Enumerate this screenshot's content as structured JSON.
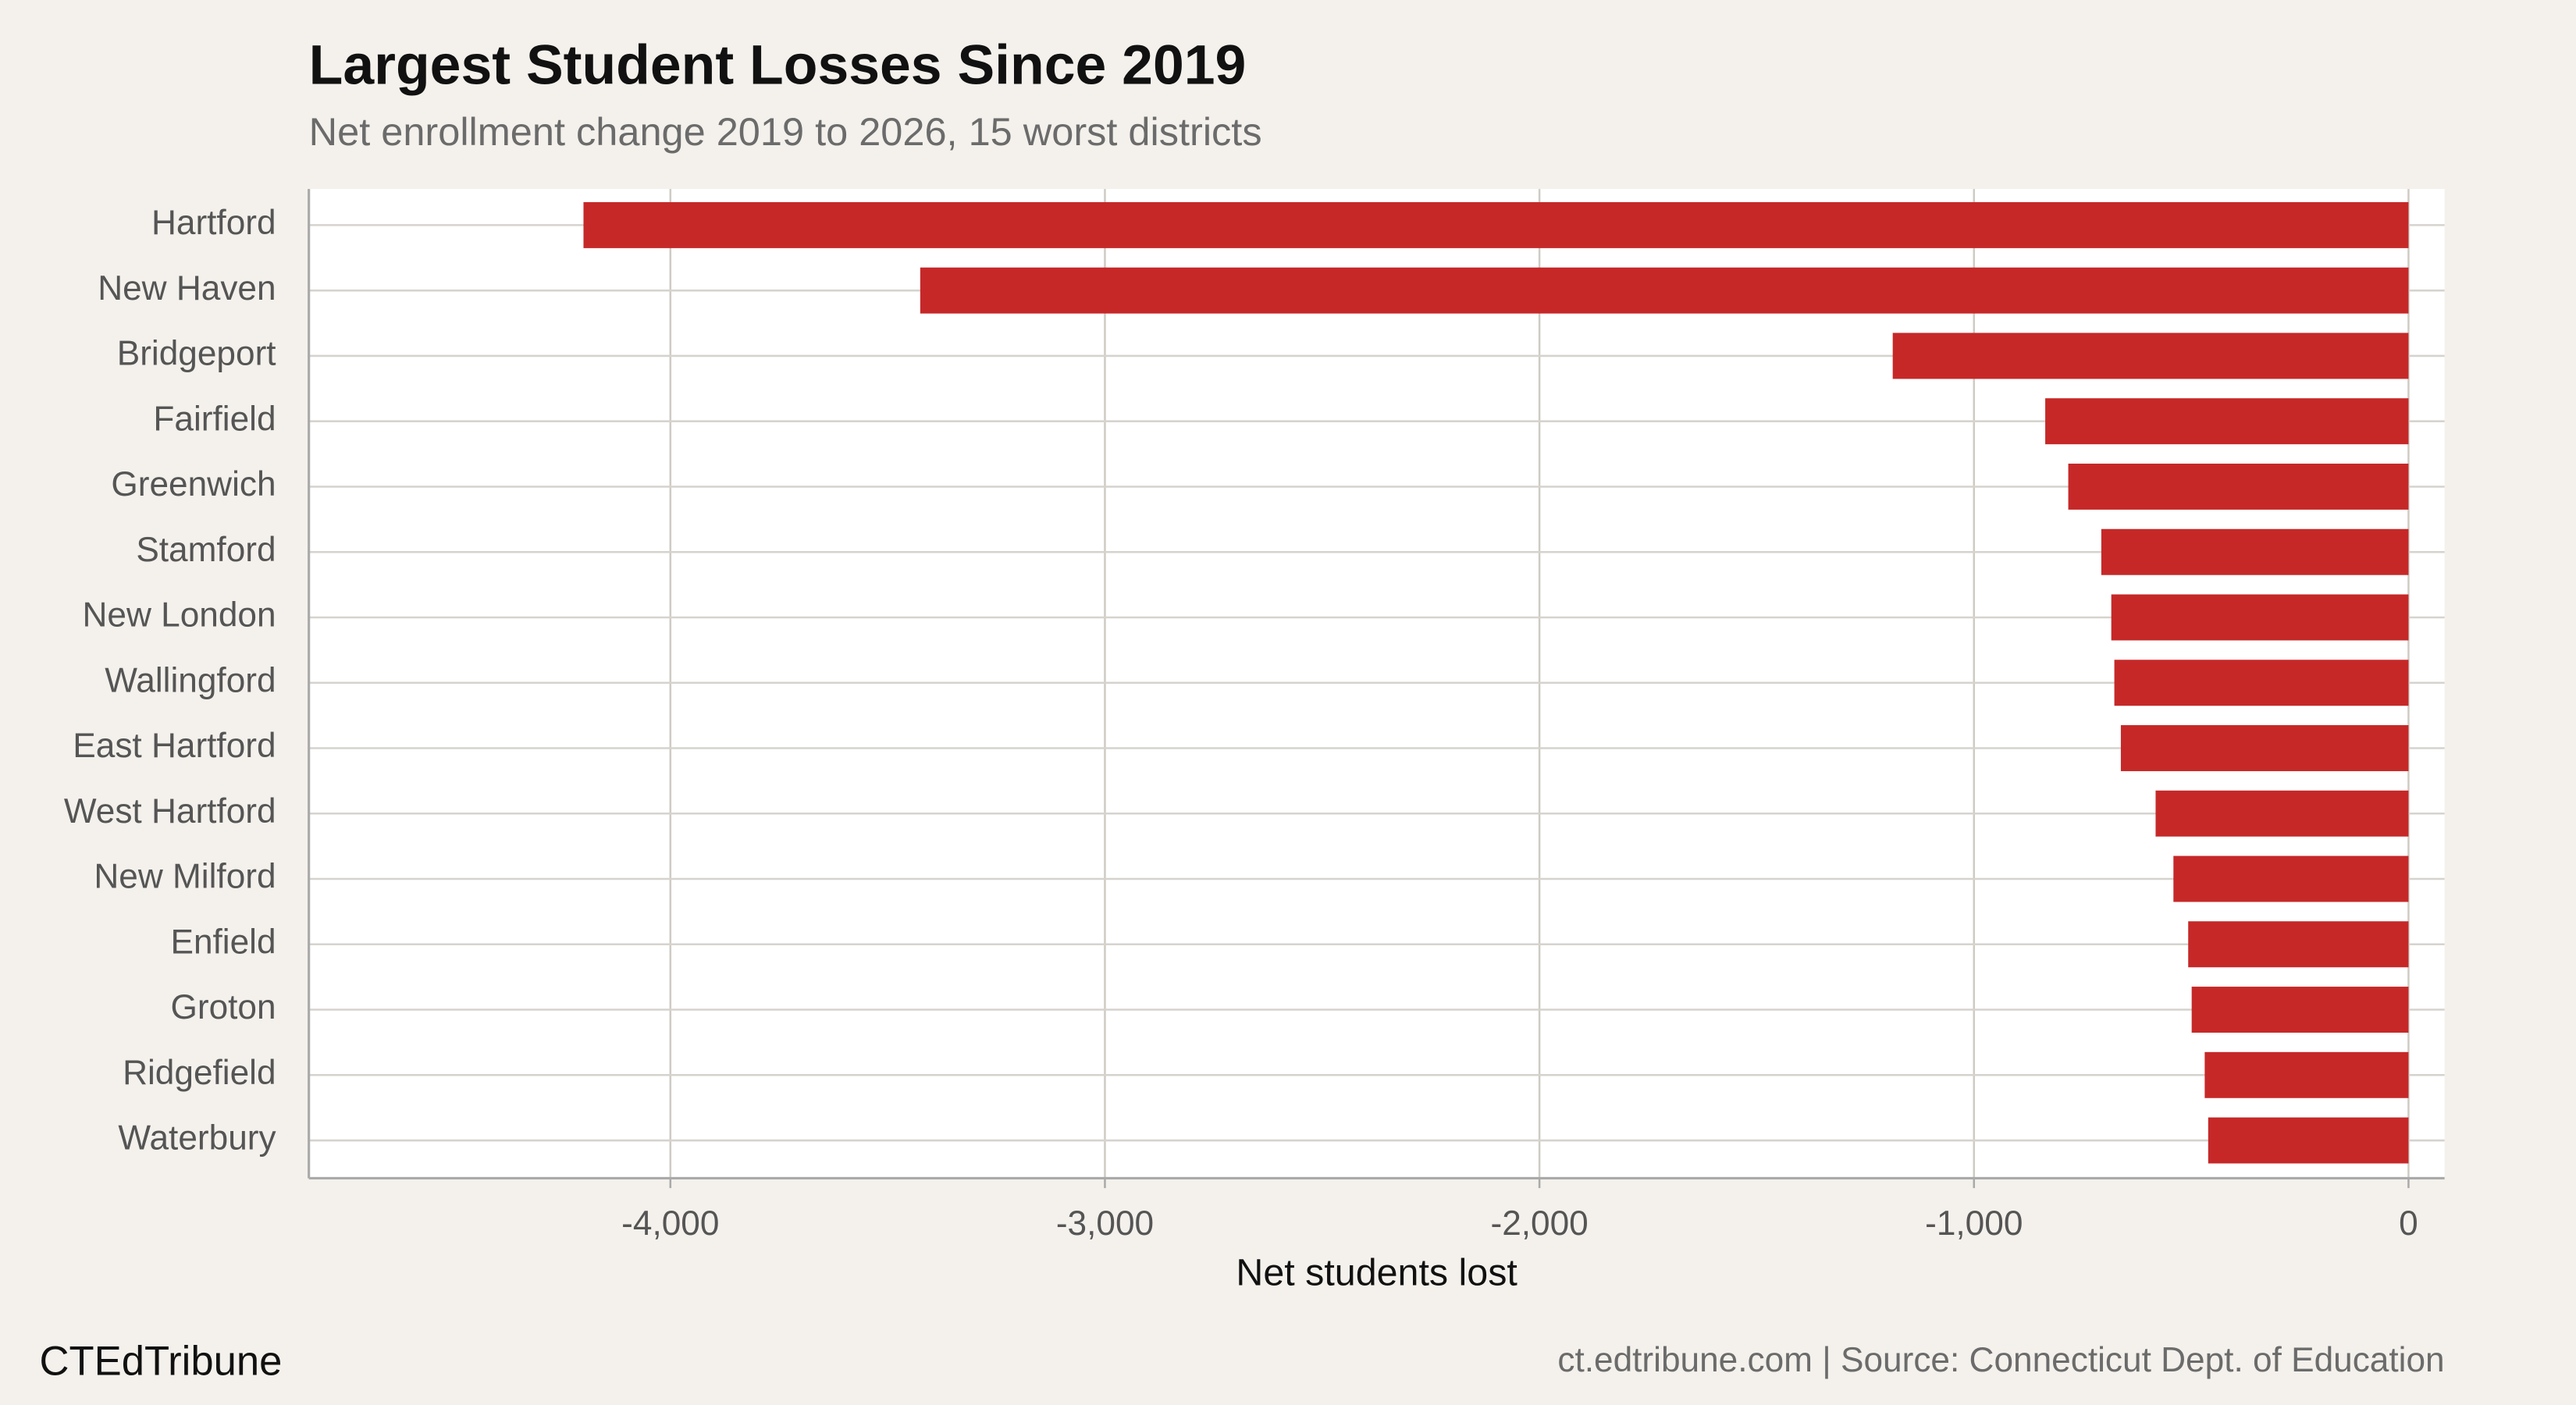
{
  "chart_data": {
    "type": "hbar",
    "title": "Largest Student Losses Since 2019",
    "subtitle": "Net enrollment change 2019 to 2026, 15 worst districts",
    "x_label": "Net students lost",
    "categories": [
      "Hartford",
      "New Haven",
      "Bridgeport",
      "Fairfield",
      "Greenwich",
      "Stamford",
      "New London",
      "Wallingford",
      "East Hartford",
      "West Hartford",
      "New Milford",
      "Enfield",
      "Groton",
      "Ridgefield",
      "Waterbury"
    ],
    "values": [
      -4200,
      -3425,
      -1187,
      -836,
      -783,
      -707,
      -684,
      -677,
      -662,
      -582,
      -541,
      -507,
      -499,
      -469,
      -461
    ],
    "color": "#c62828",
    "xlim": [
      -4832,
      83
    ],
    "xticks": [
      {
        "value": -4000,
        "label": "-4,000"
      },
      {
        "value": -3000,
        "label": "-3,000"
      },
      {
        "value": -2000,
        "label": "-2,000"
      },
      {
        "value": -1000,
        "label": "-1,000"
      },
      0
    ],
    "grid": true,
    "brand": "CTEdTribune",
    "source": "ct.edtribune.com | Source: Connecticut Dept. of Education"
  }
}
